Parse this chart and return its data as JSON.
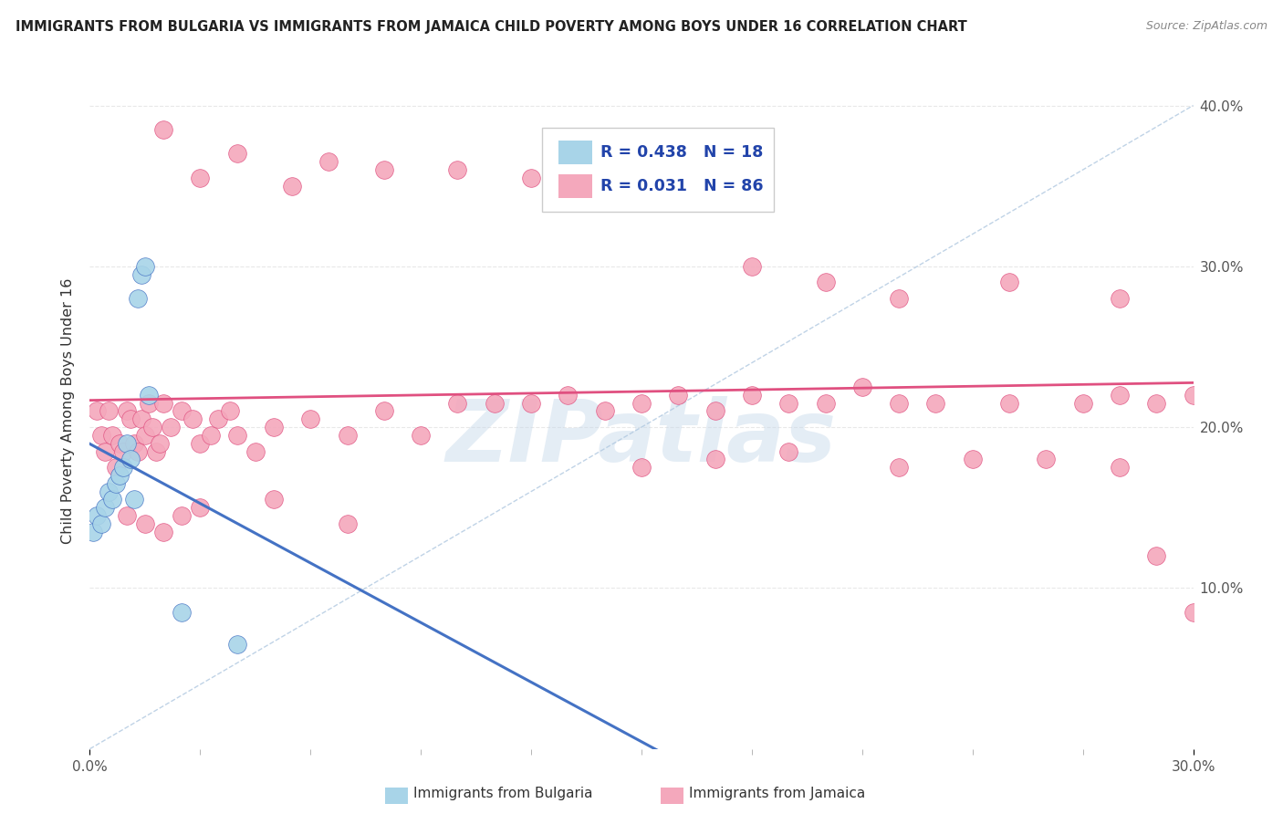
{
  "title": "IMMIGRANTS FROM BULGARIA VS IMMIGRANTS FROM JAMAICA CHILD POVERTY AMONG BOYS UNDER 16 CORRELATION CHART",
  "source": "Source: ZipAtlas.com",
  "ylabel": "Child Poverty Among Boys Under 16",
  "xlim": [
    0.0,
    0.3
  ],
  "ylim": [
    0.0,
    0.42
  ],
  "legend_label_bulgaria": "Immigrants from Bulgaria",
  "legend_label_jamaica": "Immigrants from Jamaica",
  "color_bulgaria": "#a8d4e8",
  "color_jamaica": "#f4a8bc",
  "color_bulgaria_line": "#4472c4",
  "color_jamaica_line": "#e05080",
  "color_diag_line": "#b0c8e0",
  "watermark": "ZIPatlas",
  "background_color": "#ffffff",
  "grid_color": "#e8e8e8",
  "legend_text_color": "#2244aa",
  "bul_x": [
    0.001,
    0.002,
    0.003,
    0.004,
    0.005,
    0.006,
    0.007,
    0.008,
    0.009,
    0.01,
    0.011,
    0.012,
    0.013,
    0.014,
    0.015,
    0.016,
    0.025,
    0.04
  ],
  "bul_y": [
    0.135,
    0.145,
    0.14,
    0.15,
    0.16,
    0.155,
    0.165,
    0.17,
    0.175,
    0.19,
    0.18,
    0.155,
    0.28,
    0.295,
    0.3,
    0.22,
    0.085,
    0.065
  ],
  "jam_x": [
    0.002,
    0.003,
    0.004,
    0.005,
    0.006,
    0.007,
    0.008,
    0.009,
    0.01,
    0.011,
    0.012,
    0.013,
    0.014,
    0.015,
    0.016,
    0.017,
    0.018,
    0.019,
    0.02,
    0.022,
    0.025,
    0.028,
    0.03,
    0.033,
    0.035,
    0.038,
    0.04,
    0.045,
    0.05,
    0.06,
    0.07,
    0.08,
    0.09,
    0.1,
    0.11,
    0.12,
    0.13,
    0.14,
    0.15,
    0.16,
    0.17,
    0.18,
    0.19,
    0.2,
    0.21,
    0.22,
    0.23,
    0.25,
    0.27,
    0.28,
    0.29,
    0.3,
    0.02,
    0.03,
    0.04,
    0.055,
    0.065,
    0.08,
    0.1,
    0.12,
    0.14,
    0.16,
    0.17,
    0.18,
    0.2,
    0.22,
    0.25,
    0.28,
    0.15,
    0.17,
    0.19,
    0.22,
    0.24,
    0.26,
    0.28,
    0.29,
    0.3,
    0.01,
    0.015,
    0.02,
    0.025,
    0.03,
    0.05,
    0.07
  ],
  "jam_y": [
    0.21,
    0.195,
    0.185,
    0.21,
    0.195,
    0.175,
    0.19,
    0.185,
    0.21,
    0.205,
    0.19,
    0.185,
    0.205,
    0.195,
    0.215,
    0.2,
    0.185,
    0.19,
    0.215,
    0.2,
    0.21,
    0.205,
    0.19,
    0.195,
    0.205,
    0.21,
    0.195,
    0.185,
    0.2,
    0.205,
    0.195,
    0.21,
    0.195,
    0.215,
    0.215,
    0.215,
    0.22,
    0.21,
    0.215,
    0.22,
    0.21,
    0.22,
    0.215,
    0.215,
    0.225,
    0.215,
    0.215,
    0.215,
    0.215,
    0.22,
    0.215,
    0.22,
    0.385,
    0.355,
    0.37,
    0.35,
    0.365,
    0.36,
    0.36,
    0.355,
    0.35,
    0.365,
    0.36,
    0.3,
    0.29,
    0.28,
    0.29,
    0.28,
    0.175,
    0.18,
    0.185,
    0.175,
    0.18,
    0.18,
    0.175,
    0.12,
    0.085,
    0.145,
    0.14,
    0.135,
    0.145,
    0.15,
    0.155,
    0.14
  ]
}
